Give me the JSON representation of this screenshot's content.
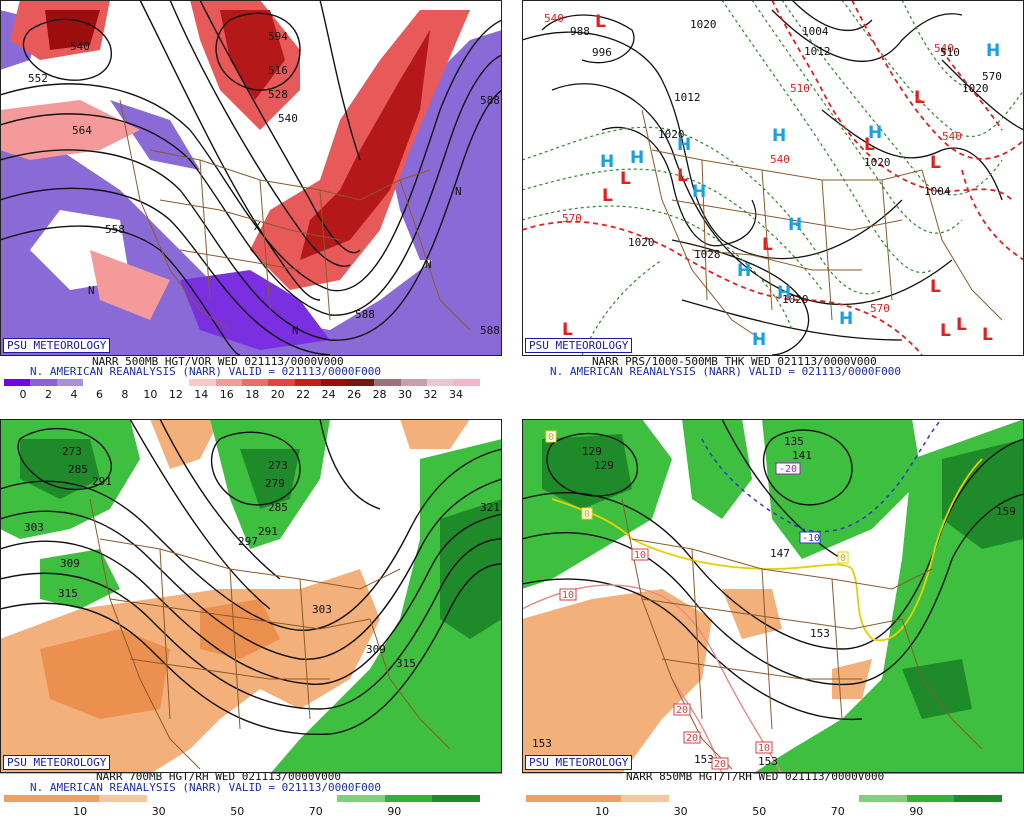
{
  "badge": "PSU METEOROLOGY",
  "panels": {
    "p500": {
      "line1": "NARR 500MB HGT/VOR WED 021113/0000V000",
      "line2": "N. AMERICAN REANALYSIS (NARR) VALID = 021113/0000F000",
      "scale_colors": [
        "#7a00e0",
        "#8f5fd6",
        "#a98fe0",
        "#ffffff",
        "#ffffff",
        "#ffffff",
        "#ffffff",
        "#ffc8c8",
        "#f59a9a",
        "#eb6e6e",
        "#e04545",
        "#c41f1f",
        "#9c0d0d",
        "#7a1515",
        "#a0707a",
        "#c8a0aa",
        "#e6c8d2",
        "#f7b5c8"
      ],
      "scale_labels": [
        "0",
        "2",
        "4",
        "6",
        "8",
        "10",
        "12",
        "14",
        "16",
        "18",
        "20",
        "22",
        "24",
        "26",
        "28",
        "30",
        "32",
        "34"
      ],
      "contour_labels": [
        "540",
        "552",
        "564",
        "588",
        "594",
        "516",
        "528",
        "540",
        "588",
        "558",
        "588",
        "N",
        "N",
        "N",
        "X",
        "N"
      ]
    },
    "pthk": {
      "line1": "NARR PRS/1000-500MB THK WED 021113/0000V000",
      "line2": "N. AMERICAN REANALYSIS (NARR) VALID = 021113/0000F000",
      "contour_labels": [
        "540",
        "988",
        "996",
        "1004",
        "1012",
        "1020",
        "1020",
        "1012",
        "1020",
        "1028",
        "1020",
        "1020",
        "1004",
        "1020",
        "510",
        "540",
        "570",
        "540",
        "570",
        "570",
        "540",
        "510"
      ],
      "highs": [
        "H",
        "H",
        "H",
        "H",
        "H",
        "H",
        "H",
        "H",
        "H",
        "H",
        "H",
        "H"
      ],
      "lows": [
        "L",
        "L",
        "L",
        "L",
        "L",
        "L",
        "L",
        "L",
        "L",
        "L",
        "L",
        "L",
        "L"
      ]
    },
    "p700": {
      "line1": "NARR 700MB HGT/RH WED 021113/0000V000",
      "line2": "N. AMERICAN REANALYSIS (NARR) VALID = 021113/0000F000",
      "scale_labels": [
        "10",
        "30",
        "50",
        "70",
        "90"
      ],
      "contour_labels": [
        "273",
        "285",
        "291",
        "303",
        "309",
        "315",
        "279",
        "273",
        "285",
        "291",
        "297",
        "303",
        "309",
        "315",
        "321"
      ]
    },
    "p850": {
      "line1": "NARR 850MB HGT/T/RH WED 021113/0000V000",
      "scale_labels": [
        "10",
        "30",
        "50",
        "70",
        "90"
      ],
      "contour_labels": [
        "129",
        "129",
        "153",
        "153",
        "153",
        "159",
        "147",
        "141",
        "135",
        "153"
      ],
      "temp_labels": [
        "0",
        "0",
        "-20",
        "-10",
        "0",
        "10",
        "10",
        "20",
        "20",
        "20",
        "10"
      ]
    }
  },
  "colors": {
    "title_blue": "#1a2db0",
    "rh_green": "#2fb52f",
    "rh_dark_green": "#1f8a2a",
    "rh_orange": "#f0a060",
    "vort_purple": "#8060d0",
    "vort_red": "#e04545",
    "state_lines": "#8a5a2a"
  }
}
